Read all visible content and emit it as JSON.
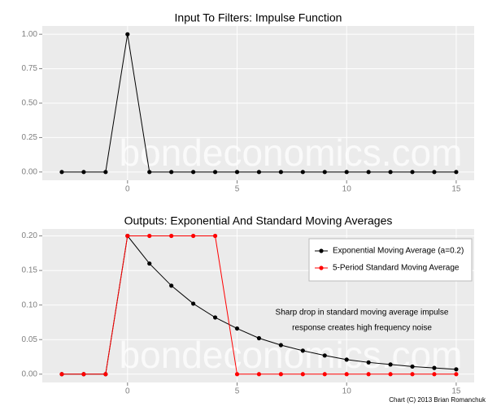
{
  "credit": "Chart (C) 2013 Brian Romanchuk",
  "chart_data": [
    {
      "type": "line",
      "title": "Input To Filters: Impulse Function",
      "watermark": "bondeconomics.com",
      "x": [
        -3,
        -2,
        -1,
        0,
        1,
        2,
        3,
        4,
        5,
        6,
        7,
        8,
        9,
        10,
        11,
        12,
        13,
        14,
        15
      ],
      "values": [
        0,
        0,
        0,
        1,
        0,
        0,
        0,
        0,
        0,
        0,
        0,
        0,
        0,
        0,
        0,
        0,
        0,
        0,
        0
      ],
      "color": "#000000",
      "xlim": [
        -3.89,
        15.82
      ],
      "xticks": [
        0,
        5,
        10,
        15
      ],
      "ylim": [
        -0.06,
        1.06
      ],
      "yticks": [
        {
          "value": 0,
          "label": "0.00"
        },
        {
          "value": 0.25,
          "label": "0.25"
        },
        {
          "value": 0.5,
          "label": "0.50"
        },
        {
          "value": 0.75,
          "label": "0.75"
        },
        {
          "value": 1,
          "label": "1.00"
        }
      ],
      "grid": true
    },
    {
      "type": "line",
      "title": "Outputs: Exponential And Standard Moving Averages",
      "watermark": "bondeconomics.com",
      "x": [
        -3,
        -2,
        -1,
        0,
        1,
        2,
        3,
        4,
        5,
        6,
        7,
        8,
        9,
        10,
        11,
        12,
        13,
        14,
        15
      ],
      "series": [
        {
          "name": "Exponential Moving Average (a=0.2)",
          "color": "#000000",
          "values": [
            0,
            0,
            0,
            0.2,
            0.16,
            0.128,
            0.102,
            0.082,
            0.066,
            0.052,
            0.042,
            0.034,
            0.027,
            0.021,
            0.017,
            0.014,
            0.011,
            0.009,
            0.007
          ]
        },
        {
          "name": "5-Period Standard Moving Average",
          "color": "#ff0000",
          "values": [
            0,
            0,
            0,
            0.2,
            0.2,
            0.2,
            0.2,
            0.2,
            0,
            0,
            0,
            0,
            0,
            0,
            0,
            0,
            0,
            0,
            0
          ]
        }
      ],
      "annotation": [
        "Sharp drop in standard moving average impulse",
        "response creates high frequency noise"
      ],
      "legend": "top-right",
      "xlim": [
        -3.89,
        15.82
      ],
      "xticks": [
        0,
        5,
        10,
        15
      ],
      "ylim": [
        -0.012,
        0.21
      ],
      "yticks": [
        {
          "value": 0,
          "label": "0.00"
        },
        {
          "value": 0.05,
          "label": "0.05"
        },
        {
          "value": 0.1,
          "label": "0.10"
        },
        {
          "value": 0.15,
          "label": "0.15"
        },
        {
          "value": 0.2,
          "label": "0.20"
        }
      ],
      "grid": true
    }
  ]
}
